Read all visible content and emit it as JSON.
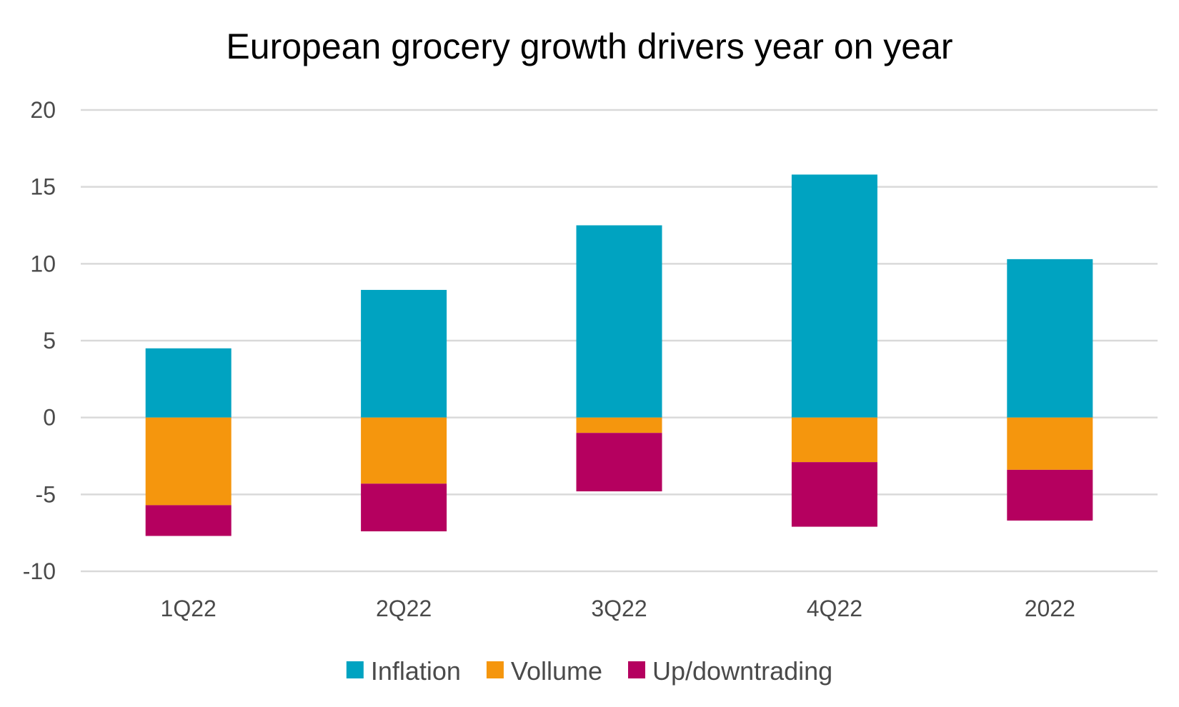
{
  "chart_data": {
    "type": "bar",
    "stacked": true,
    "title": "European grocery growth drivers year on year",
    "xlabel": "",
    "ylabel": "",
    "categories": [
      "1Q22",
      "2Q22",
      "3Q22",
      "4Q22",
      "2022"
    ],
    "ylim": [
      -10,
      20
    ],
    "yticks": [
      20,
      15,
      10,
      5,
      0,
      -5,
      -10
    ],
    "grid": true,
    "legend_position": "bottom",
    "series": [
      {
        "name": "Inflation",
        "color": "#00A3C1",
        "values": [
          4.5,
          8.3,
          12.5,
          15.8,
          10.3
        ]
      },
      {
        "name": "Vollume",
        "color": "#F5960D",
        "values": [
          -5.7,
          -4.3,
          -1.0,
          -2.9,
          -3.4
        ]
      },
      {
        "name": "Up/downtrading",
        "color": "#B5005F",
        "values": [
          -2.0,
          -3.1,
          -3.8,
          -4.2,
          -3.3
        ]
      }
    ]
  }
}
